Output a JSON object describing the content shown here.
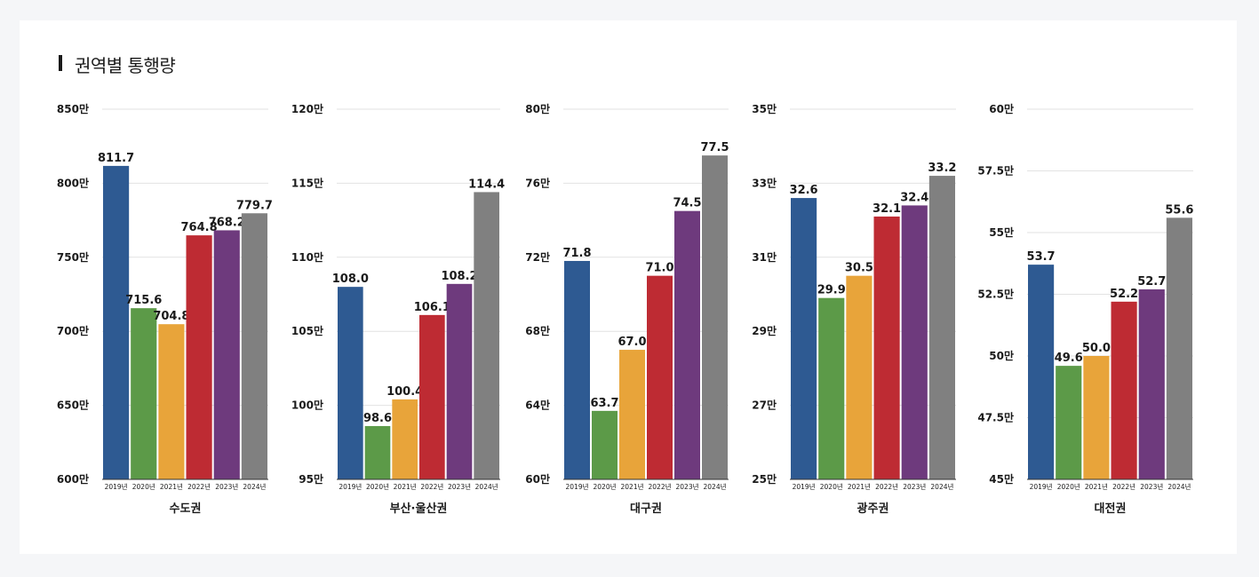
{
  "title": "권역별 통행량",
  "colors": [
    "#2e5a92",
    "#5c9a48",
    "#e8a43a",
    "#be2b33",
    "#6e3a7d",
    "#808080"
  ],
  "chart_data": [
    {
      "type": "bar",
      "region": "수도권",
      "categories": [
        "2019년",
        "2020년",
        "2021년",
        "2022년",
        "2023년",
        "2024년"
      ],
      "values": [
        811.7,
        715.6,
        704.8,
        764.8,
        768.2,
        779.7
      ],
      "value_labels": [
        "811.7",
        "715.6",
        "704.8",
        "764.8",
        "768.2",
        "779.7"
      ],
      "ylim": [
        600,
        850
      ],
      "yticks": [
        600,
        650,
        700,
        750,
        800,
        850
      ],
      "ytick_labels": [
        "600만",
        "650만",
        "700만",
        "750만",
        "800만",
        "850만"
      ]
    },
    {
      "type": "bar",
      "region": "부산·울산권",
      "categories": [
        "2019년",
        "2020년",
        "2021년",
        "2022년",
        "2023년",
        "2024년"
      ],
      "values": [
        108.0,
        98.6,
        100.4,
        106.1,
        108.2,
        114.4
      ],
      "value_labels": [
        "108.0",
        "98.6",
        "100.4",
        "106.1",
        "108.2",
        "114.4"
      ],
      "ylim": [
        95,
        120
      ],
      "yticks": [
        95,
        100,
        105,
        110,
        115,
        120
      ],
      "ytick_labels": [
        "95만",
        "100만",
        "105만",
        "110만",
        "115만",
        "120만"
      ]
    },
    {
      "type": "bar",
      "region": "대구권",
      "categories": [
        "2019년",
        "2020년",
        "2021년",
        "2022년",
        "2023년",
        "2024년"
      ],
      "values": [
        71.8,
        63.7,
        67.0,
        71.0,
        74.5,
        77.5
      ],
      "value_labels": [
        "71.8",
        "63.7",
        "67.0",
        "71.0",
        "74.5",
        "77.5"
      ],
      "ylim": [
        60,
        80
      ],
      "yticks": [
        60,
        64,
        68,
        72,
        76,
        80
      ],
      "ytick_labels": [
        "60만",
        "64만",
        "68만",
        "72만",
        "76만",
        "80만"
      ]
    },
    {
      "type": "bar",
      "region": "광주권",
      "categories": [
        "2019년",
        "2020년",
        "2021년",
        "2022년",
        "2023년",
        "2024년"
      ],
      "values": [
        32.6,
        29.9,
        30.5,
        32.1,
        32.4,
        33.2
      ],
      "value_labels": [
        "32.6",
        "29.9",
        "30.5",
        "32.1",
        "32.4",
        "33.2"
      ],
      "ylim": [
        25,
        35
      ],
      "yticks": [
        25,
        27,
        29,
        31,
        33,
        35
      ],
      "ytick_labels": [
        "25만",
        "27만",
        "29만",
        "31만",
        "33만",
        "35만"
      ]
    },
    {
      "type": "bar",
      "region": "대전권",
      "categories": [
        "2019년",
        "2020년",
        "2021년",
        "2022년",
        "2023년",
        "2024년"
      ],
      "values": [
        53.7,
        49.6,
        50.0,
        52.2,
        52.7,
        55.6
      ],
      "value_labels": [
        "53.7",
        "49.6",
        "50.0",
        "52.2",
        "52.7",
        "55.6"
      ],
      "ylim": [
        45,
        60
      ],
      "yticks": [
        45,
        47.5,
        50,
        52.5,
        55,
        57.5,
        60
      ],
      "ytick_labels": [
        "45만",
        "47.5만",
        "50만",
        "52.5만",
        "55만",
        "57.5만",
        "60만"
      ]
    }
  ]
}
